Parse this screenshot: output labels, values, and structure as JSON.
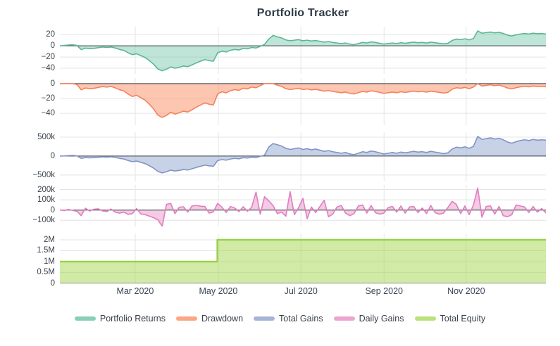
{
  "title": "Portfolio Tracker",
  "colors": {
    "background": "#ffffff",
    "grid": "#e4e4e4",
    "zero_line": "#3a4147",
    "tick_label": "#3c434c",
    "title_text": "#2e3b48",
    "portfolio_returns": "#66c2a5",
    "drawdown": "#fc8d62",
    "total_gains": "#8da0cb",
    "daily_gains": "#e78ac3",
    "total_equity": "#a6d854"
  },
  "legend": {
    "items": [
      "Portfolio Returns",
      "Drawdown",
      "Total Gains",
      "Daily Gains",
      "Total Equity"
    ]
  },
  "chart_data": {
    "type": "area",
    "title": "Portfolio Tracker",
    "x_range_note": "Daily series, early Jan 2020 through late Dec 2020",
    "x_ticks": [
      {
        "label": "Mar 2020",
        "pos": 0.155
      },
      {
        "label": "May 2020",
        "pos": 0.326
      },
      {
        "label": "Jul 2020",
        "pos": 0.496
      },
      {
        "label": "Sep 2020",
        "pos": 0.667
      },
      {
        "label": "Nov 2020",
        "pos": 0.836
      }
    ],
    "grid": true,
    "legend_position": "bottom-center",
    "subplots": [
      {
        "name": "Portfolio Returns",
        "unit": "percent",
        "type": "area",
        "color": "#66c2a5",
        "stroke": "#5cb793",
        "fill_opacity": 0.42,
        "ylim": [
          -50,
          34
        ],
        "yticks": [
          {
            "v": 20,
            "label": "20"
          },
          {
            "v": 0,
            "label": "0"
          },
          {
            "v": -20,
            "label": "−20"
          },
          {
            "v": -40,
            "label": "−40"
          }
        ],
        "values": [
          0,
          0.7,
          1.4,
          1.8,
          0.6,
          -6.8,
          -4.2,
          -5.1,
          -4.6,
          -3.4,
          -2.2,
          -3,
          -2.1,
          -4,
          -6.5,
          -8.2,
          -12.5,
          -15.8,
          -14.2,
          -17.5,
          -21,
          -26.5,
          -33,
          -41.5,
          -44.5,
          -41.8,
          -37.5,
          -40,
          -38.2,
          -36,
          -37.2,
          -34,
          -30.5,
          -27.5,
          -24.5,
          -26.5,
          -27.5,
          -12.5,
          -9.5,
          -11,
          -8,
          -6.5,
          -7.5,
          -4.5,
          -5.5,
          -3,
          -4,
          -1,
          2.5,
          12,
          18.5,
          16,
          14,
          10.5,
          9,
          10,
          11,
          9,
          10,
          8.5,
          9.5,
          8,
          6.5,
          7.5,
          6,
          5,
          4,
          5,
          3,
          2,
          4,
          6,
          5,
          7,
          6,
          4.5,
          3,
          4,
          5,
          4,
          5.5,
          4.5,
          5.5,
          6.5,
          5.5,
          6,
          5,
          6.5,
          5.5,
          4.5,
          3.5,
          4.5,
          9.5,
          12,
          11,
          12.5,
          10.5,
          13,
          26.5,
          22.5,
          23.5,
          24.5,
          23,
          24,
          22,
          19,
          17.5,
          19.5,
          21,
          22,
          21,
          22.5,
          21.5,
          22,
          21
        ]
      },
      {
        "name": "Drawdown",
        "unit": "percent",
        "type": "area",
        "color": "#fc8d62",
        "stroke": "#f4825c",
        "fill_opacity": 0.5,
        "ylim": [
          -56,
          7.5
        ],
        "yticks": [
          {
            "v": 0,
            "label": "0"
          },
          {
            "v": -20,
            "label": "−20"
          },
          {
            "v": -40,
            "label": "−40"
          }
        ],
        "values": [
          0,
          0,
          0,
          0,
          -1.2,
          -8.4,
          -5.9,
          -6.8,
          -6.3,
          -5.1,
          -3.9,
          -4.7,
          -3.8,
          -5.7,
          -8.2,
          -9.8,
          -14.1,
          -17.3,
          -15.7,
          -19,
          -22.4,
          -27.8,
          -34.2,
          -42.5,
          -45.5,
          -42.8,
          -38.6,
          -41.1,
          -39.3,
          -37.1,
          -38.3,
          -35.2,
          -31.7,
          -28.8,
          -25.8,
          -27.8,
          -28.8,
          -14,
          -11,
          -12.5,
          -9.5,
          -8.1,
          -9,
          -6.1,
          -7.1,
          -4.6,
          -5.6,
          -2.7,
          0,
          0,
          0,
          -2.1,
          -3.8,
          -6.8,
          -8,
          -7.2,
          -6.3,
          -8,
          -7.2,
          -8.4,
          -7.6,
          -8.9,
          -10.1,
          -9.3,
          -10.5,
          -11.4,
          -12.2,
          -11.4,
          -13.1,
          -13.9,
          -12.2,
          -10.5,
          -11.4,
          -9.7,
          -10.5,
          -11.8,
          -13.1,
          -12.2,
          -11.4,
          -12.2,
          -11,
          -11.8,
          -11,
          -10.1,
          -11,
          -10.5,
          -11.4,
          -10.1,
          -11,
          -11.8,
          -12.7,
          -11.8,
          -7.6,
          -5.5,
          -6.3,
          -5.1,
          -6.8,
          -4.6,
          0,
          -3.2,
          -2.4,
          -1.6,
          -2.8,
          -2,
          -3.6,
          -5.9,
          -7.1,
          -5.5,
          -4.3,
          -3.6,
          -4.3,
          -3.2,
          -4,
          -3.6,
          -4.3
        ]
      },
      {
        "name": "Total Gains",
        "unit": "USD_thousands",
        "type": "area",
        "color": "#8da0cb",
        "stroke": "#8194c6",
        "fill_opacity": 0.48,
        "ylim": [
          -670,
          630
        ],
        "yticks": [
          {
            "v": 500,
            "label": "500k"
          },
          {
            "v": 0,
            "label": "0"
          },
          {
            "v": -500,
            "label": "−500k"
          }
        ],
        "values": [
          0,
          5,
          12,
          18,
          5,
          -60,
          -40,
          -48,
          -42,
          -32,
          -22,
          -30,
          -20,
          -38,
          -60,
          -78,
          -118,
          -148,
          -132,
          -165,
          -200,
          -255,
          -320,
          -405,
          -445,
          -415,
          -370,
          -395,
          -378,
          -355,
          -368,
          -335,
          -300,
          -270,
          -238,
          -258,
          -270,
          -120,
          -92,
          -108,
          -78,
          -62,
          -72,
          -42,
          -52,
          -28,
          -38,
          -8,
          25,
          240,
          330,
          300,
          265,
          205,
          175,
          195,
          215,
          175,
          195,
          165,
          185,
          155,
          125,
          145,
          115,
          95,
          75,
          95,
          55,
          38,
          75,
          115,
          95,
          135,
          115,
          85,
          55,
          75,
          95,
          75,
          105,
          85,
          105,
          125,
          105,
          115,
          95,
          125,
          105,
          85,
          65,
          85,
          185,
          235,
          215,
          245,
          205,
          255,
          520,
          440,
          460,
          480,
          450,
          470,
          430,
          370,
          340,
          380,
          410,
          430,
          410,
          440,
          420,
          430,
          420
        ]
      },
      {
        "name": "Daily Gains",
        "unit": "USD_thousands",
        "type": "area",
        "color": "#e78ac3",
        "stroke": "#e07ec0",
        "fill_opacity": 0.45,
        "ylim": [
          -160,
          245
        ],
        "yticks": [
          {
            "v": 200,
            "label": "200k"
          },
          {
            "v": 100,
            "label": "100k"
          },
          {
            "v": 0,
            "label": "0"
          },
          {
            "v": -100,
            "label": "−100k"
          }
        ],
        "values": [
          2,
          -5,
          6,
          -4,
          -12,
          -55,
          18,
          -10,
          8,
          12,
          -8,
          -15,
          10,
          -22,
          -30,
          -20,
          -42,
          -35,
          15,
          -38,
          -45,
          -60,
          -75,
          -95,
          -160,
          55,
          65,
          -35,
          28,
          32,
          -20,
          40,
          45,
          38,
          35,
          -30,
          -18,
          65,
          30,
          -25,
          35,
          20,
          -15,
          32,
          -12,
          28,
          175,
          -40,
          130,
          90,
          45,
          -35,
          -20,
          -60,
          180,
          -45,
          25,
          115,
          -85,
          30,
          -25,
          35,
          95,
          -65,
          -40,
          30,
          45,
          -30,
          -55,
          -35,
          40,
          50,
          -30,
          45,
          -25,
          -40,
          -30,
          25,
          35,
          -20,
          40,
          -30,
          30,
          35,
          -25,
          20,
          -35,
          45,
          -25,
          -40,
          -30,
          25,
          85,
          55,
          -35,
          40,
          -45,
          50,
          215,
          -70,
          35,
          40,
          -40,
          35,
          -55,
          -65,
          -45,
          50,
          40,
          30,
          -25,
          35,
          -20,
          15,
          -28
        ]
      },
      {
        "name": "Total Equity",
        "unit": "USD_thousands",
        "type": "step-area",
        "color": "#a6d854",
        "stroke": "#9ad14b",
        "fill_opacity": 0.52,
        "ylim": [
          0,
          2290
        ],
        "yticks": [
          {
            "v": 2000,
            "label": "2M"
          },
          {
            "v": 1500,
            "label": "1.5M"
          },
          {
            "v": 1000,
            "label": "1M"
          },
          {
            "v": 500,
            "label": "0.5M"
          },
          {
            "v": 0,
            "label": "0"
          }
        ],
        "step": {
          "x_norm": 0.324,
          "before": 1000,
          "after": 2000
        }
      }
    ]
  }
}
